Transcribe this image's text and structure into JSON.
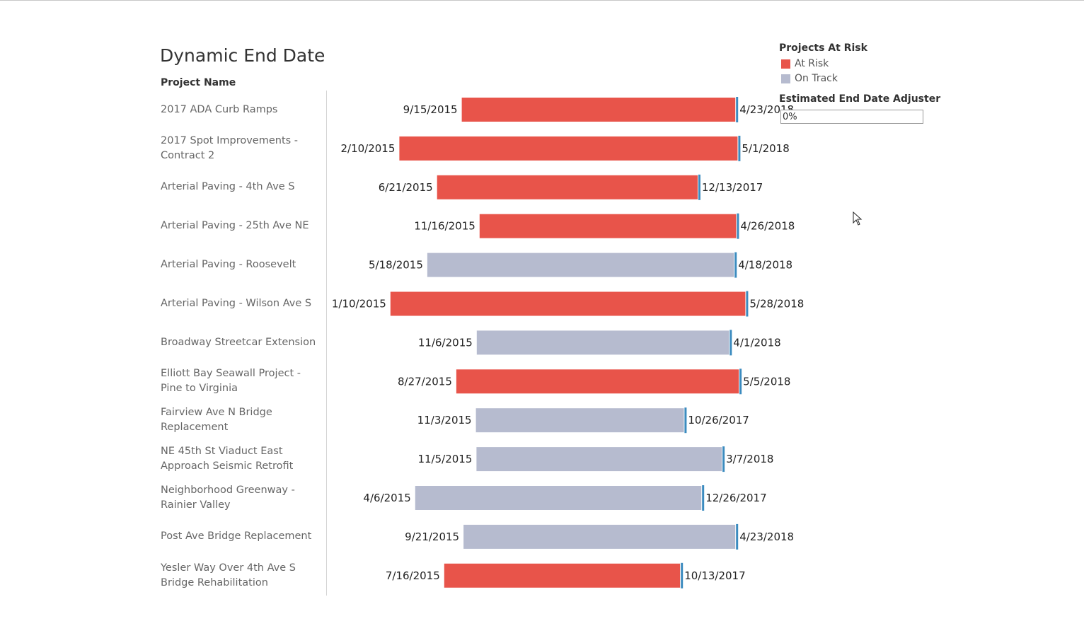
{
  "topline": "",
  "dashboard": {
    "title": "Dynamic End Date",
    "column_header": "Project Name"
  },
  "legend": {
    "title": "Projects At Risk",
    "items": [
      {
        "label": "At Risk",
        "color": "#e8544a"
      },
      {
        "label": "On Track",
        "color": "#b6bbcf"
      }
    ]
  },
  "adjuster": {
    "title": "Estimated End Date Adjuster",
    "value": "0%"
  },
  "colors": {
    "at_risk": "#e8544a",
    "on_track": "#b6bbcf",
    "marker": "#3b8bbf"
  },
  "chart_data": {
    "type": "gantt",
    "title": "Dynamic End Date",
    "ylabel": "Project Name",
    "xlabel": "",
    "x_range": [
      "2014-06-03",
      "2018-07-25"
    ],
    "rows": [
      {
        "name": "2017 ADA Curb Ramps",
        "start": "9/15/2015",
        "end": "4/23/2018",
        "status": "At Risk",
        "marker": "4/23/2018"
      },
      {
        "name": "2017 Spot Improvements - Contract 2",
        "start": "2/10/2015",
        "end": "5/1/2018",
        "status": "At Risk",
        "marker": "5/1/2018"
      },
      {
        "name": "Arterial Paving - 4th Ave S",
        "start": "6/21/2015",
        "end": "12/13/2017",
        "status": "At Risk",
        "marker": "12/13/2017"
      },
      {
        "name": "Arterial Paving - 25th Ave NE",
        "start": "11/16/2015",
        "end": "4/26/2018",
        "status": "At Risk",
        "marker": "4/26/2018"
      },
      {
        "name": "Arterial Paving - Roosevelt",
        "start": "5/18/2015",
        "end": "4/18/2018",
        "status": "On Track",
        "marker": "4/18/2018"
      },
      {
        "name": "Arterial Paving - Wilson Ave S",
        "start": "1/10/2015",
        "end": "5/28/2018",
        "status": "At Risk",
        "marker": "5/28/2018"
      },
      {
        "name": "Broadway Streetcar Extension",
        "start": "11/6/2015",
        "end": "4/1/2018",
        "status": "On Track",
        "marker": "4/1/2018"
      },
      {
        "name": "Elliott Bay Seawall Project - Pine to Virginia",
        "start": "8/27/2015",
        "end": "5/5/2018",
        "status": "At Risk",
        "marker": "5/5/2018"
      },
      {
        "name": "Fairview Ave N Bridge Replacement",
        "start": "11/3/2015",
        "end": "10/26/2017",
        "status": "On Track",
        "marker": "10/26/2017"
      },
      {
        "name": "NE 45th St Viaduct East Approach Seismic Retrofit",
        "start": "11/5/2015",
        "end": "3/7/2018",
        "status": "On Track",
        "marker": "3/7/2018"
      },
      {
        "name": "Neighborhood Greenway - Rainier Valley",
        "start": "4/6/2015",
        "end": "12/26/2017",
        "status": "On Track",
        "marker": "12/26/2017"
      },
      {
        "name": "Post Ave Bridge Replacement",
        "start": "9/21/2015",
        "end": "4/23/2018",
        "status": "On Track",
        "marker": "4/23/2018"
      },
      {
        "name": "Yesler Way Over 4th Ave S Bridge Rehabilitation",
        "start": "7/16/2015",
        "end": "10/13/2017",
        "status": "At Risk",
        "marker": "10/13/2017"
      }
    ]
  }
}
